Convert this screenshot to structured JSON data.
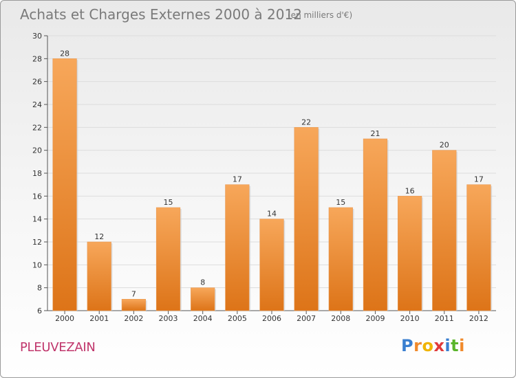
{
  "chart_data": {
    "type": "bar",
    "title": "Achats et Charges Externes 2000 à 2012",
    "subtitle": "(en milliers d'€)",
    "categories": [
      "2000",
      "2001",
      "2002",
      "2003",
      "2004",
      "2005",
      "2006",
      "2007",
      "2008",
      "2009",
      "2010",
      "2011",
      "2012"
    ],
    "values": [
      28,
      12,
      7,
      15,
      8,
      17,
      14,
      22,
      15,
      21,
      16,
      20,
      17
    ],
    "ylim": [
      6,
      30
    ],
    "yticks": [
      6,
      8,
      10,
      12,
      14,
      16,
      18,
      20,
      22,
      24,
      26,
      28,
      30
    ],
    "grid": true,
    "bar_color": "#f08a2c"
  },
  "footer": {
    "commune": "PLEUVEZAIN",
    "brand_letters": [
      "P",
      "r",
      "o",
      "x",
      "i",
      "t",
      "i"
    ],
    "brand_colors": [
      "#3a7fd0",
      "#f08a2c",
      "#f0b400",
      "#e03a3a",
      "#3a7fd0",
      "#5ab52b",
      "#f08a2c"
    ]
  }
}
